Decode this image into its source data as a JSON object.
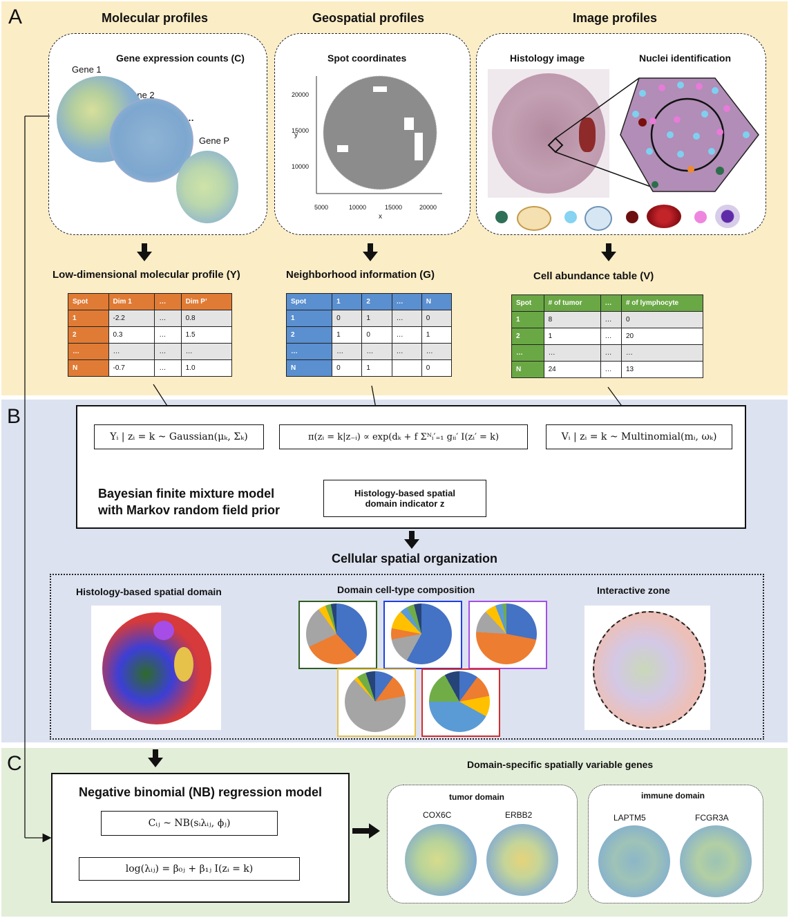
{
  "panels": {
    "a": "A",
    "b": "B",
    "c": "C"
  },
  "panel_a": {
    "molecular": {
      "title": "Molecular profiles",
      "subtitle": "Gene expression counts (C)",
      "genes": [
        "Gene 1",
        "Gene 2",
        "…",
        "Gene P"
      ]
    },
    "geospatial": {
      "title": "Geospatial profiles",
      "subtitle": "Spot coordinates",
      "x_label": "x",
      "y_label": "y",
      "x_ticks": [
        "5000",
        "10000",
        "15000",
        "20000"
      ],
      "y_ticks": [
        "20000",
        "15000",
        "10000"
      ]
    },
    "image": {
      "title": "Image profiles",
      "histology": "Histology image",
      "nuclei": "Nuclei identification"
    },
    "molecular_table": {
      "title": "Low-dimensional molecular profile (Y)",
      "header": [
        "Spot",
        "Dim 1",
        "…",
        "Dim P’"
      ],
      "rows": [
        [
          "1",
          "-2.2",
          "…",
          "0.8"
        ],
        [
          "2",
          "0.3",
          "…",
          "1.5"
        ],
        [
          "…",
          "…",
          "…",
          "…"
        ],
        [
          "N",
          "-0.7",
          "…",
          "1.0"
        ]
      ]
    },
    "neighbor_table": {
      "title": "Neighborhood information (G)",
      "header": [
        "Spot",
        "1",
        "2",
        "…",
        "N"
      ],
      "rows": [
        [
          "1",
          "0",
          "1",
          "…",
          "0"
        ],
        [
          "2",
          "1",
          "0",
          "…",
          "1"
        ],
        [
          "…",
          "…",
          "…",
          "…",
          "…"
        ],
        [
          "N",
          "0",
          "1",
          "",
          "0"
        ]
      ]
    },
    "cell_table": {
      "title": "Cell abundance table  (V)",
      "header": [
        "Spot",
        "# of tumor",
        "…",
        "#  of lymphocyte"
      ],
      "rows": [
        [
          "1",
          "8",
          "…",
          "0"
        ],
        [
          "2",
          "1",
          "…",
          "20"
        ],
        [
          "…",
          "…",
          "…",
          "…"
        ],
        [
          "N",
          "24",
          "…",
          "13"
        ]
      ]
    }
  },
  "panel_b": {
    "eq_gaussian": "Yᵢ | zᵢ = k ~ Gaussian(μₖ, Σₖ)",
    "eq_potts": "π(zᵢ = k|z₋ᵢ) ∝ exp(dₖ + f Σᴺᵢ′₌₁ gᵢᵢ′ I(zᵢ′ = k)",
    "eq_multinomial": "Vᵢ | zᵢ = k ~ Multinomial(mᵢ, ωₖ)",
    "model_label_1": "Bayesian finite mixture model",
    "model_label_2": "with Markov random field prior",
    "indicator_1": "Histology-based spatial",
    "indicator_2": "domain indicator z",
    "organization_title": "Cellular spatial organization",
    "spatial_domain": "Histology-based spatial domain",
    "composition": "Domain cell-type composition",
    "interactive_zone": "Interactive zone",
    "box_colors": [
      "#2e5e1e",
      "#1f3fe0",
      "#a54de6",
      "#e8c14a",
      "#d62a2a"
    ],
    "pie_colors": [
      "#4472c4",
      "#ed7d31",
      "#a5a5a5",
      "#ffc000",
      "#5b9bd5",
      "#70ad47",
      "#264478"
    ]
  },
  "panel_c": {
    "model_title": "Negative binomial (NB) regression model",
    "eq_nb": "Cᵢⱼ ~ NB(sᵢλᵢⱼ, ϕⱼ)",
    "eq_log": "log(λᵢⱼ) = β₀ⱼ + β₁ⱼ I(zᵢ = k)",
    "svg_title": "Domain-specific spatially variable genes",
    "tumor_domain": "tumor domain",
    "immune_domain": "immune domain",
    "tumor_genes": [
      "COX6C",
      "ERBB2"
    ],
    "immune_genes": [
      "LAPTM5",
      "FCGR3A"
    ]
  }
}
